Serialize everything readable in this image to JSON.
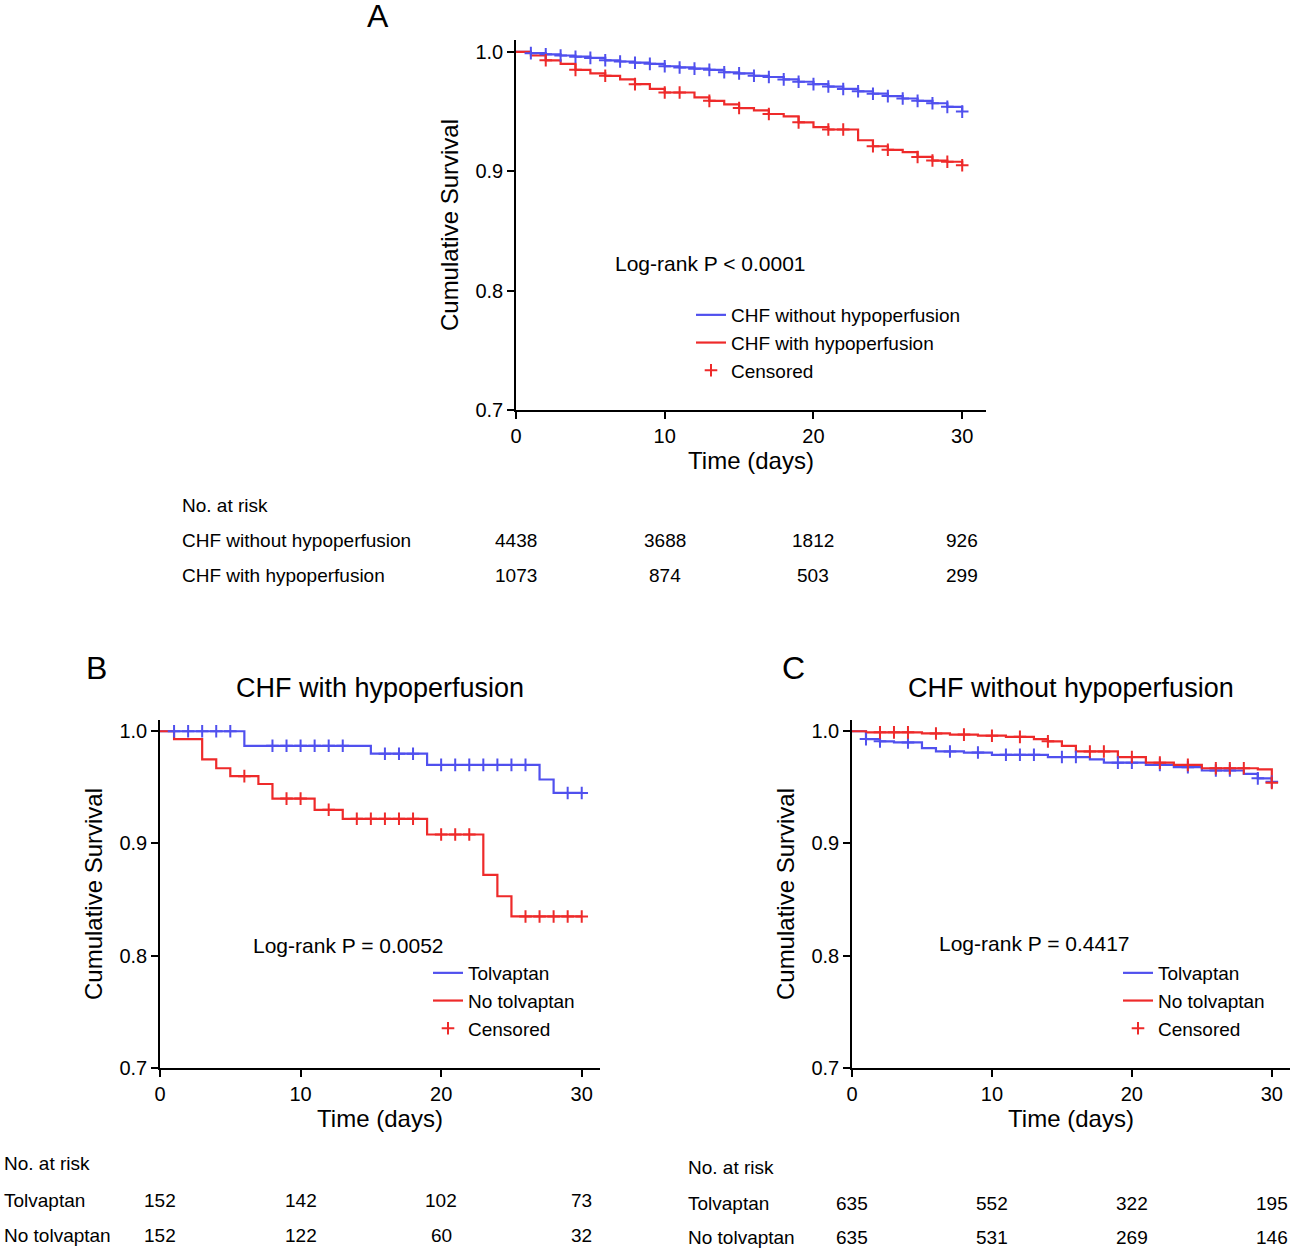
{
  "chart_data": [
    {
      "type": "line",
      "panel": "A",
      "x_label": "Time (days)",
      "y_label": "Cumulative Survival",
      "xlim": [
        0,
        31.6
      ],
      "xticks": [
        0,
        10,
        20,
        30
      ],
      "ylim": [
        0.7,
        1.01
      ],
      "yticks": [
        0.7,
        0.8,
        0.9,
        {
          "value": 1,
          "label": "1.0"
        }
      ],
      "grid": false,
      "line_style": "step",
      "marker": "cross",
      "legend": "bottom right",
      "annotation": "Log-rank P < 0.0001",
      "censored_label": "Censored",
      "series": [
        {
          "name": "CHF without hypoperfusion",
          "color": "#5050ee",
          "x": [
            0,
            1,
            2,
            3,
            4,
            5,
            6,
            7,
            8,
            9,
            10,
            11,
            12,
            13,
            14,
            15,
            16,
            17,
            18,
            19,
            20,
            21,
            22,
            23,
            24,
            25,
            26,
            27,
            28,
            29,
            30
          ],
          "values": [
            1.0,
            0.999,
            0.998,
            0.997,
            0.996,
            0.995,
            0.993,
            0.992,
            0.991,
            0.99,
            0.988,
            0.987,
            0.986,
            0.985,
            0.983,
            0.982,
            0.98,
            0.979,
            0.977,
            0.975,
            0.973,
            0.971,
            0.969,
            0.967,
            0.965,
            0.963,
            0.961,
            0.959,
            0.957,
            0.954,
            0.95
          ],
          "censored": [
            1,
            2,
            3,
            4,
            5,
            6,
            7,
            8,
            9,
            10,
            11,
            12,
            13,
            14,
            15,
            16,
            17,
            18,
            19,
            20,
            21,
            22,
            23,
            24,
            25,
            26,
            27,
            28,
            29,
            30
          ]
        },
        {
          "name": "CHF with hypoperfusion",
          "color": "#ee2a2a",
          "x": [
            0,
            1,
            2,
            3,
            4,
            5,
            6,
            7,
            8,
            9,
            10,
            12,
            13,
            14,
            15,
            16,
            17,
            18,
            19,
            20,
            21,
            23,
            24,
            25,
            26,
            27,
            28,
            29,
            30
          ],
          "values": [
            1.0,
            0.997,
            0.993,
            0.99,
            0.985,
            0.982,
            0.98,
            0.977,
            0.973,
            0.969,
            0.966,
            0.962,
            0.959,
            0.956,
            0.953,
            0.951,
            0.948,
            0.946,
            0.941,
            0.937,
            0.935,
            0.926,
            0.921,
            0.918,
            0.916,
            0.912,
            0.909,
            0.908,
            0.905
          ],
          "censored": [
            2,
            4,
            6,
            8,
            10,
            11,
            13,
            15,
            17,
            19,
            21,
            22,
            24,
            25,
            27,
            28,
            29,
            30
          ]
        }
      ],
      "risk_table": {
        "title": "No. at risk",
        "x": [
          0,
          10,
          20,
          30
        ],
        "rows": [
          {
            "name": "CHF without hypoperfusion",
            "values": [
              4438,
              3688,
              1812,
              926
            ]
          },
          {
            "name": "CHF with hypoperfusion",
            "values": [
              1073,
              874,
              503,
              299
            ]
          }
        ]
      }
    },
    {
      "type": "line",
      "panel": "B",
      "title": "CHF with hypoperfusion",
      "x_label": "Time (days)",
      "y_label": "Cumulative Survival",
      "xlim": [
        0,
        31.3
      ],
      "xticks": [
        0,
        10,
        20,
        30
      ],
      "ylim": [
        0.7,
        1.01
      ],
      "yticks": [
        0.7,
        0.8,
        0.9,
        {
          "value": 1,
          "label": "1.0"
        }
      ],
      "grid": false,
      "line_style": "step",
      "marker": "cross",
      "legend": "bottom right",
      "annotation": "Log-rank P = 0.0052",
      "censored_label": "Censored",
      "series": [
        {
          "name": "Tolvaptan",
          "color": "#5050ee",
          "x": [
            0,
            6,
            15,
            19,
            27,
            28,
            30
          ],
          "values": [
            1.0,
            0.987,
            0.98,
            0.97,
            0.957,
            0.945,
            0.945
          ],
          "censored": [
            1,
            2,
            3,
            4,
            5,
            8,
            9,
            10,
            11,
            12,
            13,
            16,
            17,
            18,
            20,
            21,
            22,
            23,
            24,
            25,
            26,
            29,
            30
          ]
        },
        {
          "name": "No tolvaptan",
          "color": "#ee2a2a",
          "x": [
            0,
            1,
            3,
            4,
            5,
            7,
            8,
            11,
            13,
            19,
            23,
            24,
            25,
            30
          ],
          "values": [
            1.0,
            0.993,
            0.975,
            0.967,
            0.96,
            0.953,
            0.94,
            0.93,
            0.922,
            0.908,
            0.872,
            0.853,
            0.835,
            0.835
          ],
          "censored": [
            6,
            9,
            10,
            12,
            14,
            15,
            16,
            17,
            18,
            20,
            21,
            22,
            26,
            27,
            28,
            29,
            30
          ]
        }
      ],
      "risk_table": {
        "title": "No. at risk",
        "x": [
          0,
          10,
          20,
          30
        ],
        "rows": [
          {
            "name": "Tolvaptan",
            "values": [
              152,
              142,
              102,
              73
            ]
          },
          {
            "name": "No tolvaptan",
            "values": [
              152,
              122,
              60,
              32
            ]
          }
        ]
      }
    },
    {
      "type": "line",
      "panel": "C",
      "title": "CHF without hypoperfusion",
      "x_label": "Time (days)",
      "y_label": "Cumulative Survival",
      "xlim": [
        0,
        31.3
      ],
      "xticks": [
        0,
        10,
        20,
        30
      ],
      "ylim": [
        0.7,
        1.01
      ],
      "yticks": [
        0.7,
        0.8,
        0.9,
        {
          "value": 1,
          "label": "1.0"
        }
      ],
      "grid": false,
      "line_style": "step",
      "marker": "cross",
      "legend": "bottom right",
      "annotation": "Log-rank P = 0.4417",
      "censored_label": "Censored",
      "series": [
        {
          "name": "Tolvaptan",
          "color": "#5050ee",
          "x": [
            0,
            1,
            2,
            3,
            5,
            6,
            8,
            10,
            14,
            17,
            18,
            21,
            23,
            25,
            28,
            29,
            30
          ],
          "values": [
            1.0,
            0.993,
            0.991,
            0.99,
            0.985,
            0.982,
            0.981,
            0.979,
            0.977,
            0.975,
            0.972,
            0.97,
            0.968,
            0.965,
            0.962,
            0.958,
            0.955
          ],
          "censored": [
            1,
            2,
            4,
            7,
            9,
            11,
            12,
            13,
            15,
            16,
            19,
            20,
            22,
            24,
            26,
            27,
            29,
            30
          ]
        },
        {
          "name": "No tolvaptan",
          "color": "#ee2a2a",
          "x": [
            0,
            1,
            5,
            7,
            9,
            11,
            13,
            14,
            15,
            16,
            19,
            21,
            23,
            25,
            29,
            30
          ],
          "values": [
            1.0,
            0.999,
            0.998,
            0.997,
            0.996,
            0.995,
            0.993,
            0.991,
            0.987,
            0.982,
            0.977,
            0.972,
            0.97,
            0.967,
            0.966,
            0.954
          ],
          "censored": [
            2,
            3,
            4,
            6,
            8,
            10,
            12,
            14,
            17,
            18,
            20,
            22,
            24,
            26,
            27,
            28,
            30
          ]
        }
      ],
      "risk_table": {
        "title": "No. at risk",
        "x": [
          0,
          10,
          20,
          30
        ],
        "rows": [
          {
            "name": "Tolvaptan",
            "values": [
              635,
              552,
              322,
              195
            ]
          },
          {
            "name": "No tolvaptan",
            "values": [
              635,
              531,
              269,
              146
            ]
          }
        ]
      }
    }
  ]
}
